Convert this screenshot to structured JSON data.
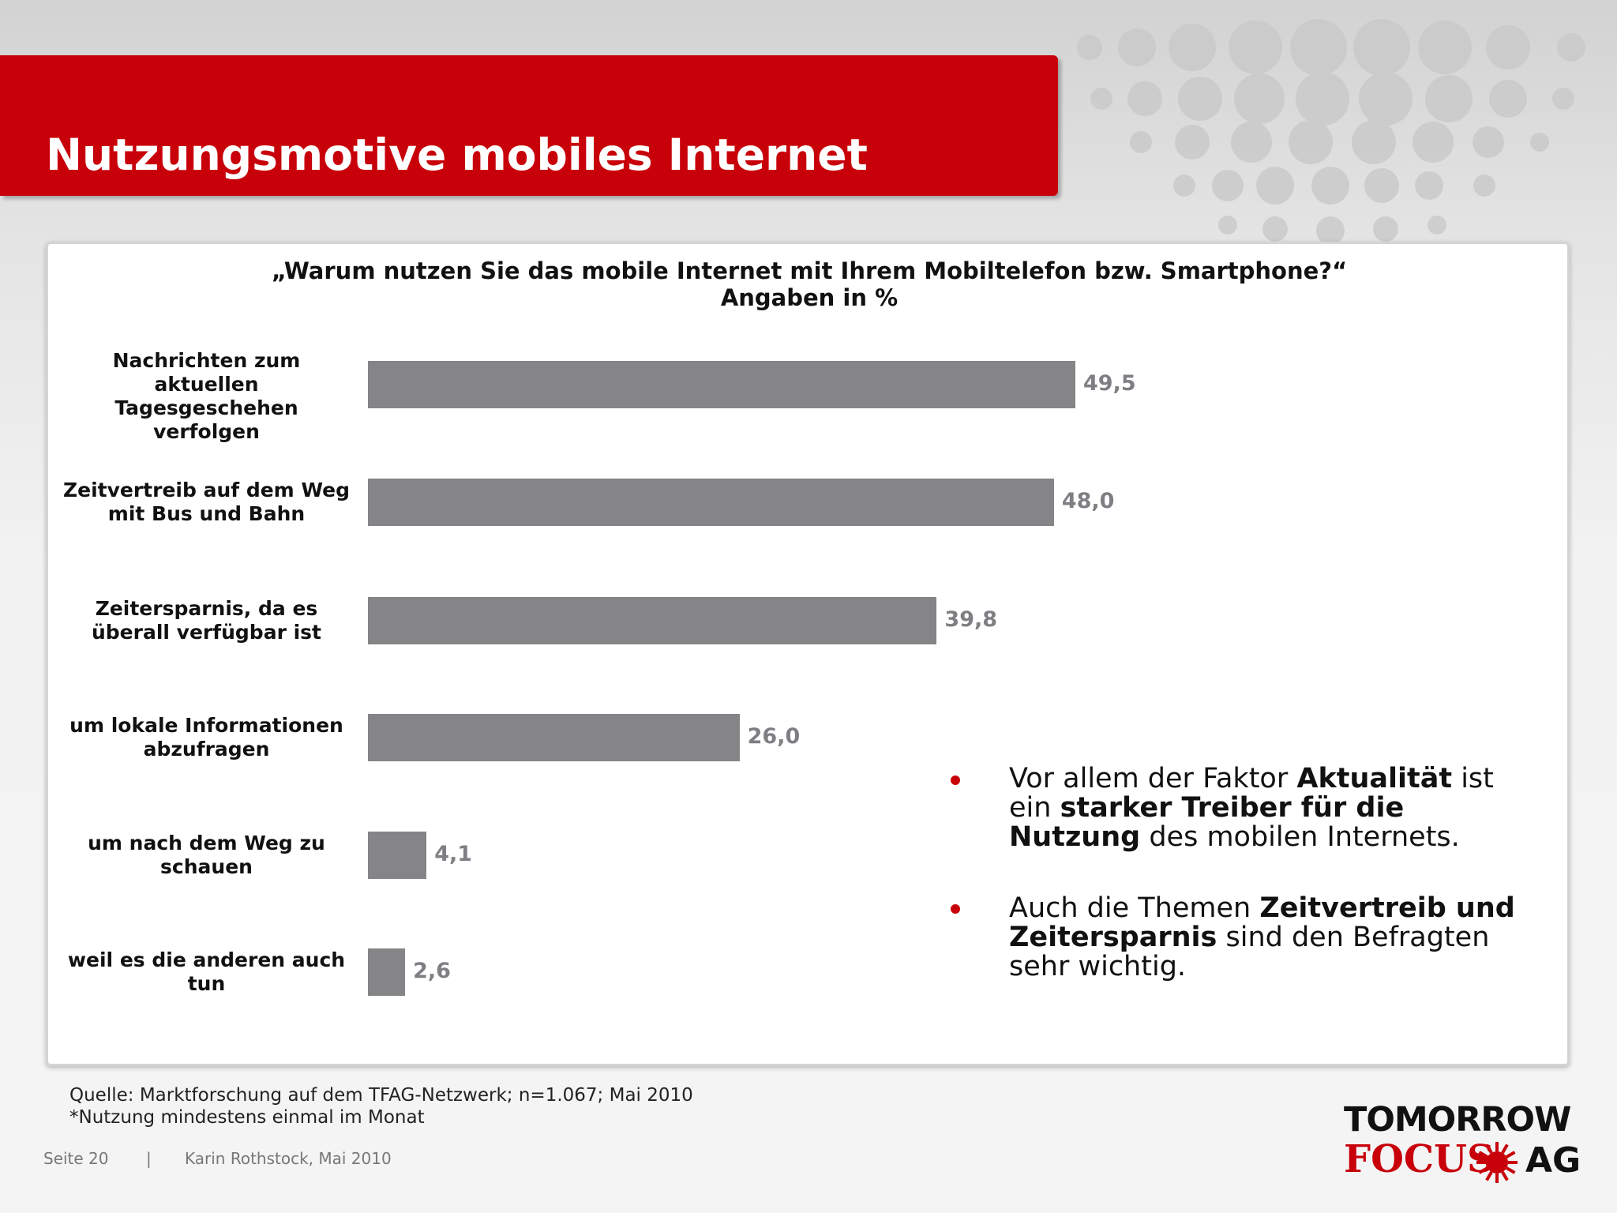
{
  "slide": {
    "title": "Nutzungsmotive mobiles Internet",
    "question": "„Warum nutzen Sie das mobile Internet mit Ihrem Mobiltelefon bzw. Smartphone?“",
    "unit_line": "Angaben in %",
    "bullets": [
      {
        "html": "Vor allem der Faktor <b>Aktualität</b> ist ein <b>starker Treiber für die Nutzung</b> des mobilen Internets."
      },
      {
        "html": "Auch die Themen <b>Zeitvertreib und Zeitersparnis</b> sind den Befragten sehr wichtig."
      }
    ],
    "source_line1": "Quelle: Marktforschung auf dem TFAG-Netzwerk; n=1.067; Mai 2010",
    "source_line2": "*Nutzung mindestens einmal im Monat",
    "footer_page": "Seite 20",
    "footer_sep": "|",
    "footer_author": "Karin Rothstock, Mai 2010",
    "logo": {
      "line1": "TOMORROW",
      "focus": "FOCUS",
      "ag": "AG"
    }
  },
  "colors": {
    "brand_red": "#c8000a",
    "bar": "#858487",
    "value_text": "#7f7e82"
  },
  "chart_data": {
    "type": "bar",
    "orientation": "horizontal",
    "title": "„Warum nutzen Sie das mobile Internet mit Ihrem Mobiltelefon bzw. Smartphone?“",
    "subtitle": "Angaben in %",
    "categories": [
      "Nachrichten zum aktuellen Tagesgeschehen verfolgen",
      "Zeitvertreib auf dem Weg mit Bus und Bahn",
      "Zeitersparnis, da es überall verfügbar ist",
      "um lokale Informationen abzufragen",
      "um nach dem Weg zu schauen",
      "weil es die anderen auch tun"
    ],
    "category_lines": [
      [
        "Nachrichten zum",
        "aktuellen Tagesgeschehen",
        "verfolgen"
      ],
      [
        "Zeitvertreib auf dem Weg",
        "mit Bus und Bahn"
      ],
      [
        "Zeitersparnis, da es",
        "überall verfügbar ist"
      ],
      [
        "um lokale Informationen",
        "abzufragen"
      ],
      [
        "um nach dem Weg zu",
        "schauen"
      ],
      [
        "weil es die anderen auch",
        "tun"
      ]
    ],
    "values": [
      49.5,
      48.0,
      39.8,
      26.0,
      4.1,
      2.6
    ],
    "value_labels": [
      "49,5",
      "48,0",
      "39,8",
      "26,0",
      "4,1",
      "2,6"
    ],
    "xlim": [
      0,
      50
    ],
    "grid": false,
    "legend": "none"
  }
}
